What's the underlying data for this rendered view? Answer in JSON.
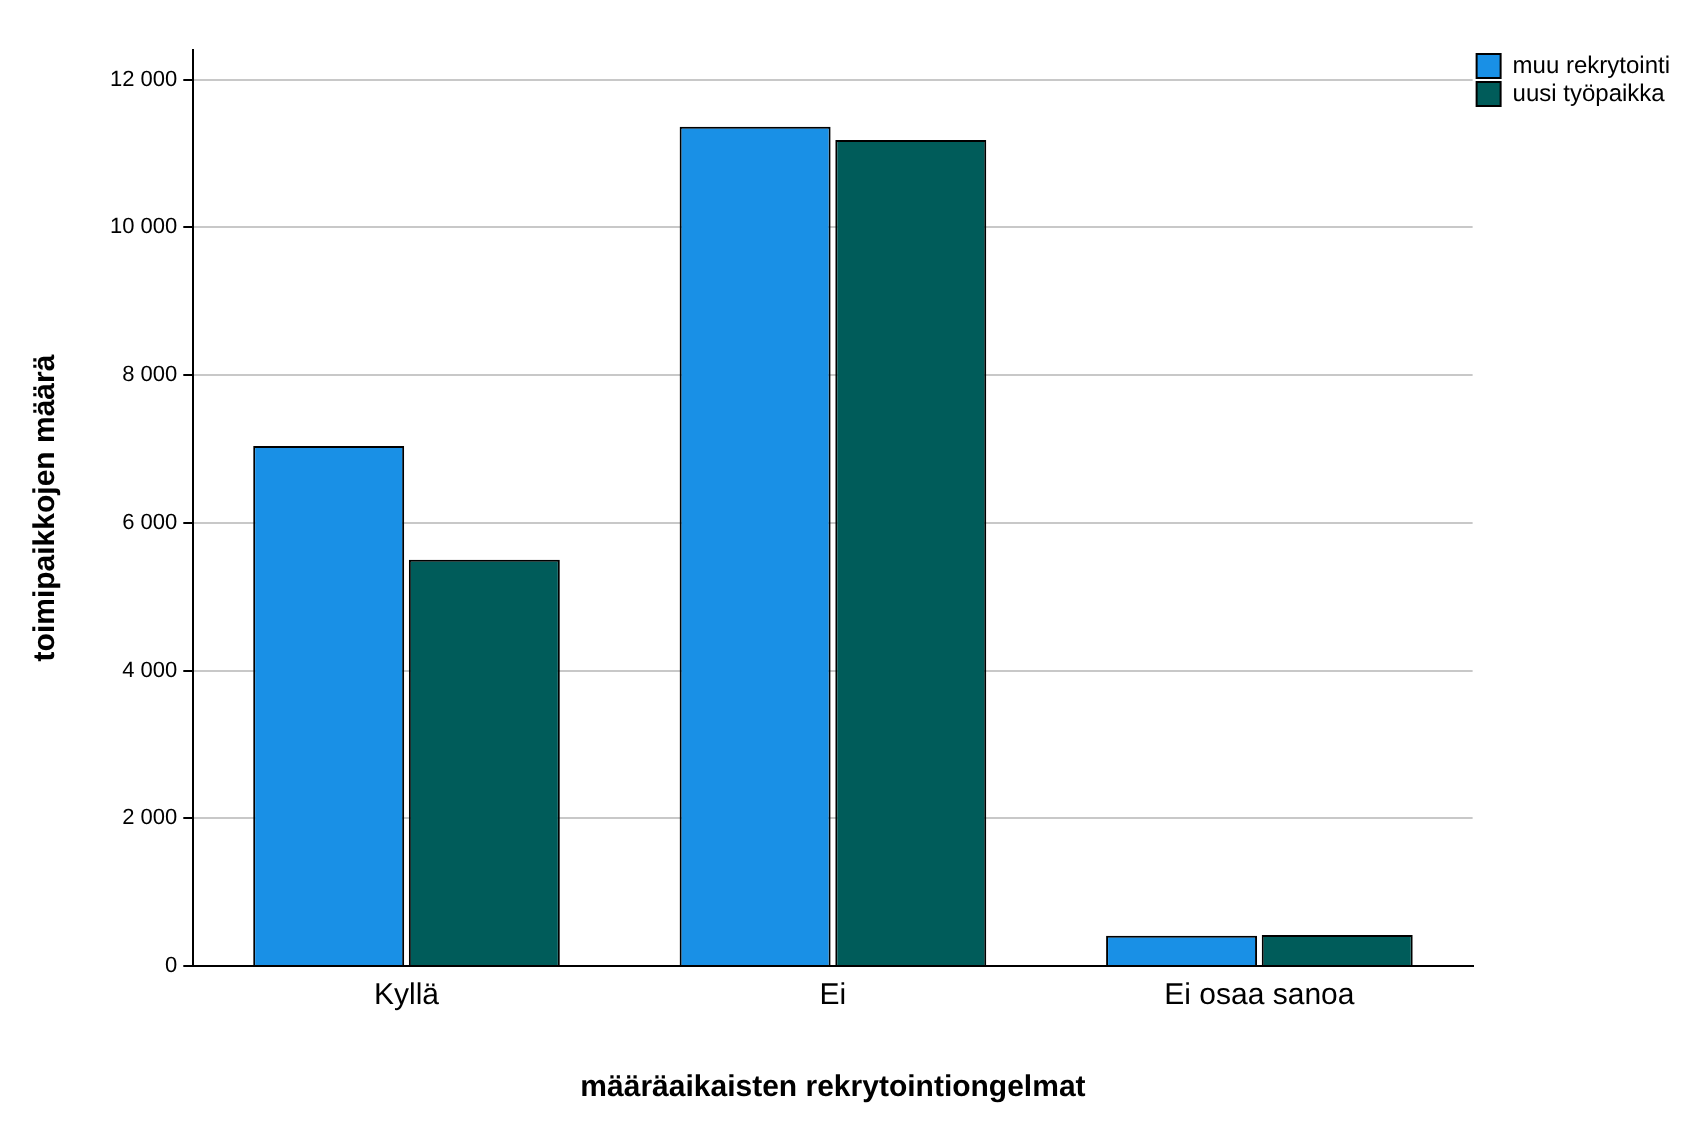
{
  "chart_data": {
    "type": "bar",
    "xlabel": "määräaikaisten rekrytointiongelmat",
    "ylabel": "toimipaikkojen määrä",
    "categories": [
      "Kyllä",
      "Ei",
      "Ei osaa sanoa"
    ],
    "series": [
      {
        "name": "muu rekrytointi",
        "color": "#1990e6",
        "values": [
          7040,
          11360,
          410
        ]
      },
      {
        "name": "uusi työpaikka",
        "color": "#005c5a",
        "values": [
          5500,
          11180,
          420
        ]
      }
    ],
    "ylim": [
      0,
      12400
    ],
    "yticks": [
      0,
      {
        "value": 2000,
        "label": "2 000"
      },
      {
        "value": 4000,
        "label": "4 000"
      },
      {
        "value": 6000,
        "label": "6 000"
      },
      {
        "value": 8000,
        "label": "8 000"
      },
      {
        "value": 10000,
        "label": "10 000"
      },
      {
        "value": 12000,
        "label": "12 000"
      }
    ],
    "grid": "y",
    "legend": "top right"
  }
}
